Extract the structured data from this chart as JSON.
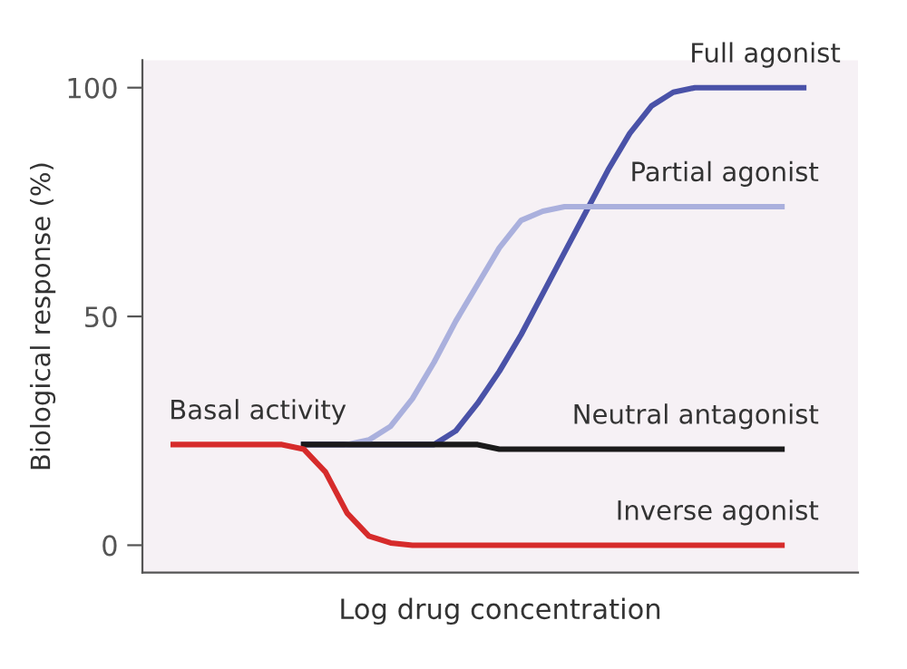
{
  "chart_data": {
    "type": "line",
    "xlabel": "Log drug concentration",
    "ylabel": "Biological response (%)",
    "categories": [
      null,
      null,
      null,
      null,
      null,
      null,
      null,
      null,
      null,
      null,
      null,
      null,
      null,
      null,
      null,
      null,
      null,
      null,
      null,
      null,
      null,
      null,
      null,
      null,
      null,
      null,
      null,
      null,
      null,
      null
    ],
    "series": [
      {
        "name": "Full agonist",
        "color": "#4a52a8",
        "values": [
          null,
          null,
          null,
          null,
          null,
          null,
          22,
          22,
          22,
          22,
          22,
          22,
          22,
          25,
          31,
          38,
          46,
          55,
          64,
          73,
          82,
          90,
          96,
          99,
          100,
          100,
          100,
          100,
          100,
          100
        ]
      },
      {
        "name": "Partial agonist",
        "color": "#aab0dd",
        "values": [
          null,
          null,
          null,
          null,
          null,
          null,
          null,
          null,
          22,
          23,
          26,
          32,
          40,
          49,
          57,
          65,
          71,
          73,
          74,
          74,
          74,
          74,
          74,
          74,
          74,
          74,
          74,
          74,
          74,
          null
        ]
      },
      {
        "name": "Neutral antagonist",
        "color": "#1a1a1a",
        "values": [
          null,
          null,
          null,
          null,
          null,
          null,
          22,
          22,
          22,
          22,
          22,
          22,
          22,
          22,
          22,
          21,
          21,
          21,
          21,
          21,
          21,
          21,
          21,
          21,
          21,
          21,
          21,
          21,
          21,
          null
        ]
      },
      {
        "name": "Inverse agonist",
        "color": "#d62b2b",
        "values": [
          22,
          22,
          22,
          22,
          22,
          22,
          21,
          16,
          7,
          2,
          0.5,
          0,
          0,
          0,
          0,
          0,
          0,
          0,
          0,
          0,
          0,
          0,
          0,
          0,
          0,
          0,
          0,
          0,
          0,
          null
        ]
      }
    ],
    "annotations": [
      {
        "text": "Basal activity",
        "y": 22
      }
    ],
    "ylim": [
      -6,
      106
    ],
    "yticks": [
      0,
      50,
      100
    ],
    "tick_labels": "y",
    "grid": false,
    "legend": false,
    "marker": "none",
    "line_style": "solid"
  }
}
